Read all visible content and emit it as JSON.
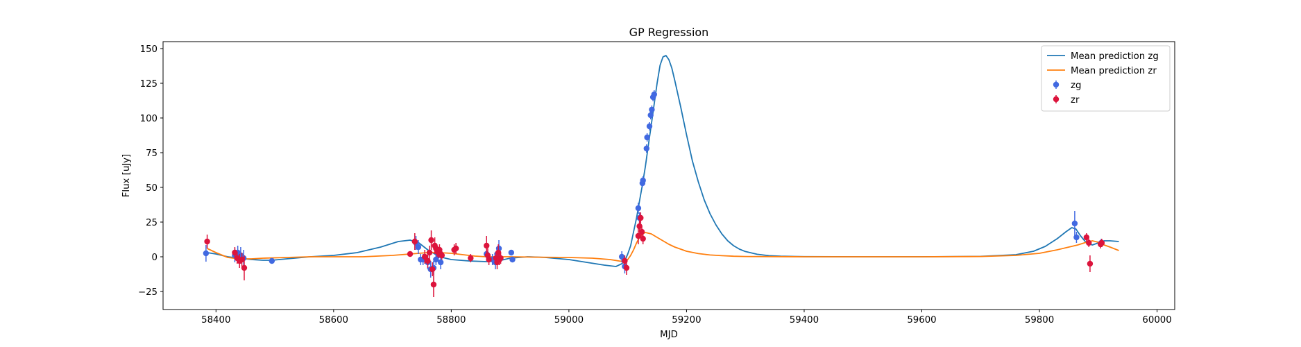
{
  "chart_data": {
    "type": "scatter",
    "title": "GP Regression",
    "xlabel": "MJD",
    "ylabel": "Flux [uJy]",
    "xlim": [
      58310,
      60030
    ],
    "ylim": [
      -38,
      155
    ],
    "xticks": [
      58400,
      58600,
      58800,
      59000,
      59200,
      59400,
      59600,
      59800,
      60000
    ],
    "yticks": [
      -25,
      0,
      25,
      50,
      75,
      100,
      125,
      150
    ],
    "grid": false,
    "legend_position": "top-right",
    "colors": {
      "mean_zg": "#1f77b4",
      "mean_zr": "#ff7f0e",
      "obs_zg": "#4169e1",
      "obs_zr": "#dc143c"
    },
    "series": [
      {
        "name": "Mean prediction zg",
        "kind": "line",
        "x": [
          58385,
          58400,
          58420,
          58440,
          58460,
          58480,
          58495,
          58520,
          58560,
          58600,
          58640,
          58680,
          58710,
          58730,
          58745,
          58760,
          58780,
          58800,
          58830,
          58860,
          58880,
          58900,
          58930,
          58960,
          59000,
          59030,
          59060,
          59080,
          59090,
          59095,
          59100,
          59105,
          59110,
          59115,
          59120,
          59125,
          59130,
          59135,
          59140,
          59145,
          59150,
          59155,
          59160,
          59165,
          59170,
          59175,
          59180,
          59190,
          59200,
          59210,
          59220,
          59230,
          59240,
          59250,
          59260,
          59270,
          59280,
          59290,
          59300,
          59320,
          59340,
          59360,
          59400,
          59500,
          59600,
          59700,
          59760,
          59790,
          59810,
          59830,
          59845,
          59855,
          59862,
          59870,
          59880,
          59890,
          59900,
          59910,
          59920,
          59935
        ],
        "y": [
          3,
          2,
          0,
          -1,
          -2,
          -2.5,
          -2.5,
          -1.5,
          0,
          1,
          3,
          7,
          11,
          12,
          10,
          5,
          0,
          -2,
          -3,
          -3.5,
          -3,
          -1,
          0,
          -0.5,
          -2,
          -4,
          -6,
          -7,
          -5,
          -3,
          2,
          8,
          18,
          28,
          40,
          52,
          65,
          80,
          95,
          110,
          125,
          138,
          144,
          145,
          142,
          136,
          127,
          108,
          88,
          69,
          54,
          41,
          31,
          23,
          16.5,
          11.5,
          8,
          5.5,
          3.8,
          1.8,
          0.8,
          0.4,
          0.1,
          0,
          0,
          0.3,
          1.5,
          4,
          7.5,
          13,
          18,
          21,
          20,
          15,
          10,
          8.5,
          10,
          11.5,
          11.5,
          11
        ]
      },
      {
        "name": "Mean prediction zr",
        "kind": "line",
        "x": [
          58385,
          58400,
          58420,
          58440,
          58460,
          58480,
          58520,
          58560,
          58600,
          58650,
          58700,
          58730,
          58745,
          58760,
          58780,
          58800,
          58820,
          58840,
          58860,
          58880,
          58900,
          58950,
          59000,
          59040,
          59070,
          59085,
          59095,
          59100,
          59105,
          59110,
          59115,
          59120,
          59125,
          59130,
          59140,
          59150,
          59160,
          59170,
          59180,
          59190,
          59200,
          59220,
          59240,
          59260,
          59280,
          59300,
          59400,
          59500,
          59600,
          59700,
          59760,
          59800,
          59830,
          59850,
          59865,
          59880,
          59890,
          59900,
          59910,
          59920,
          59935
        ],
        "y": [
          6,
          3,
          -0.5,
          -1.5,
          -1.5,
          -1,
          -0.5,
          0,
          0,
          0,
          1,
          2,
          2.5,
          3,
          3,
          2.5,
          1.5,
          0.5,
          0,
          0,
          0,
          -0.3,
          -0.5,
          -1,
          -2,
          -3,
          -3.5,
          -2,
          1,
          5,
          10,
          14,
          16.5,
          17.5,
          16.5,
          14,
          11.5,
          9,
          7,
          5.5,
          4,
          2.3,
          1.3,
          0.8,
          0.4,
          0.2,
          0,
          0,
          0,
          0.2,
          1,
          2.5,
          5,
          7,
          8.5,
          10.5,
          11.5,
          10.5,
          8.5,
          7,
          4.5
        ]
      },
      {
        "name": "zg",
        "kind": "errorbar",
        "x": [
          58383,
          58432,
          58437,
          58442,
          58447,
          58495,
          58740,
          58744,
          58748,
          58752,
          58760,
          58765,
          58770,
          58774,
          58778,
          58782,
          58860,
          58870,
          58875,
          58878,
          58881,
          58902,
          58904,
          59090,
          59095,
          59118,
          59120,
          59125,
          59126,
          59132,
          59133,
          59137,
          59139,
          59141,
          59143,
          59145,
          59860,
          59863,
          59905
        ],
        "y": [
          2.5,
          1,
          3,
          1,
          -1,
          -3,
          10,
          7,
          -2,
          -2,
          -4,
          -9,
          -8,
          -2,
          1,
          -4,
          2,
          -2,
          -4,
          2,
          6,
          3,
          -2,
          0,
          -7,
          35,
          28,
          53,
          55,
          78,
          86,
          94,
          102,
          106,
          115,
          117,
          24,
          14,
          10
        ],
        "err": [
          6,
          5,
          5,
          6,
          6,
          2,
          5,
          5,
          4,
          4,
          5,
          6,
          5,
          4,
          4,
          5,
          5,
          4,
          5,
          4,
          6,
          2,
          2,
          4,
          5,
          4,
          4,
          3,
          3,
          3,
          3,
          3,
          3,
          3,
          3,
          3,
          9,
          4,
          3
        ]
      },
      {
        "name": "zr",
        "kind": "errorbar",
        "x": [
          58385,
          58432,
          58436,
          58440,
          58444,
          58448,
          58730,
          58738,
          58755,
          58760,
          58763,
          58766,
          58768,
          58770,
          58772,
          58774,
          58776,
          58778,
          58780,
          58782,
          58784,
          58805,
          58808,
          58833,
          58860,
          58862,
          58864,
          58876,
          58878,
          58880,
          58882,
          58884,
          59095,
          59098,
          59118,
          59120,
          59122,
          59124,
          59126,
          59880,
          59884,
          59886,
          59904,
          59906
        ],
        "y": [
          11,
          3,
          -1,
          -3,
          -2,
          -8,
          2,
          11,
          0,
          -3,
          3,
          12,
          -9,
          -20,
          8,
          6,
          4,
          3,
          5,
          2,
          1,
          5,
          6,
          -1,
          8,
          1,
          -2,
          -1,
          -4,
          3,
          -2,
          -1,
          -3,
          -8,
          15,
          22,
          28,
          18,
          13,
          14,
          10,
          -5,
          9,
          10
        ],
        "err": [
          5,
          4,
          4,
          5,
          5,
          9,
          2,
          6,
          5,
          5,
          5,
          7,
          5,
          9,
          6,
          4,
          4,
          4,
          4,
          3,
          3,
          4,
          4,
          3,
          7,
          5,
          4,
          4,
          5,
          6,
          4,
          4,
          4,
          5,
          6,
          4,
          4,
          4,
          4,
          3,
          3,
          6,
          3,
          3
        ]
      }
    ]
  }
}
